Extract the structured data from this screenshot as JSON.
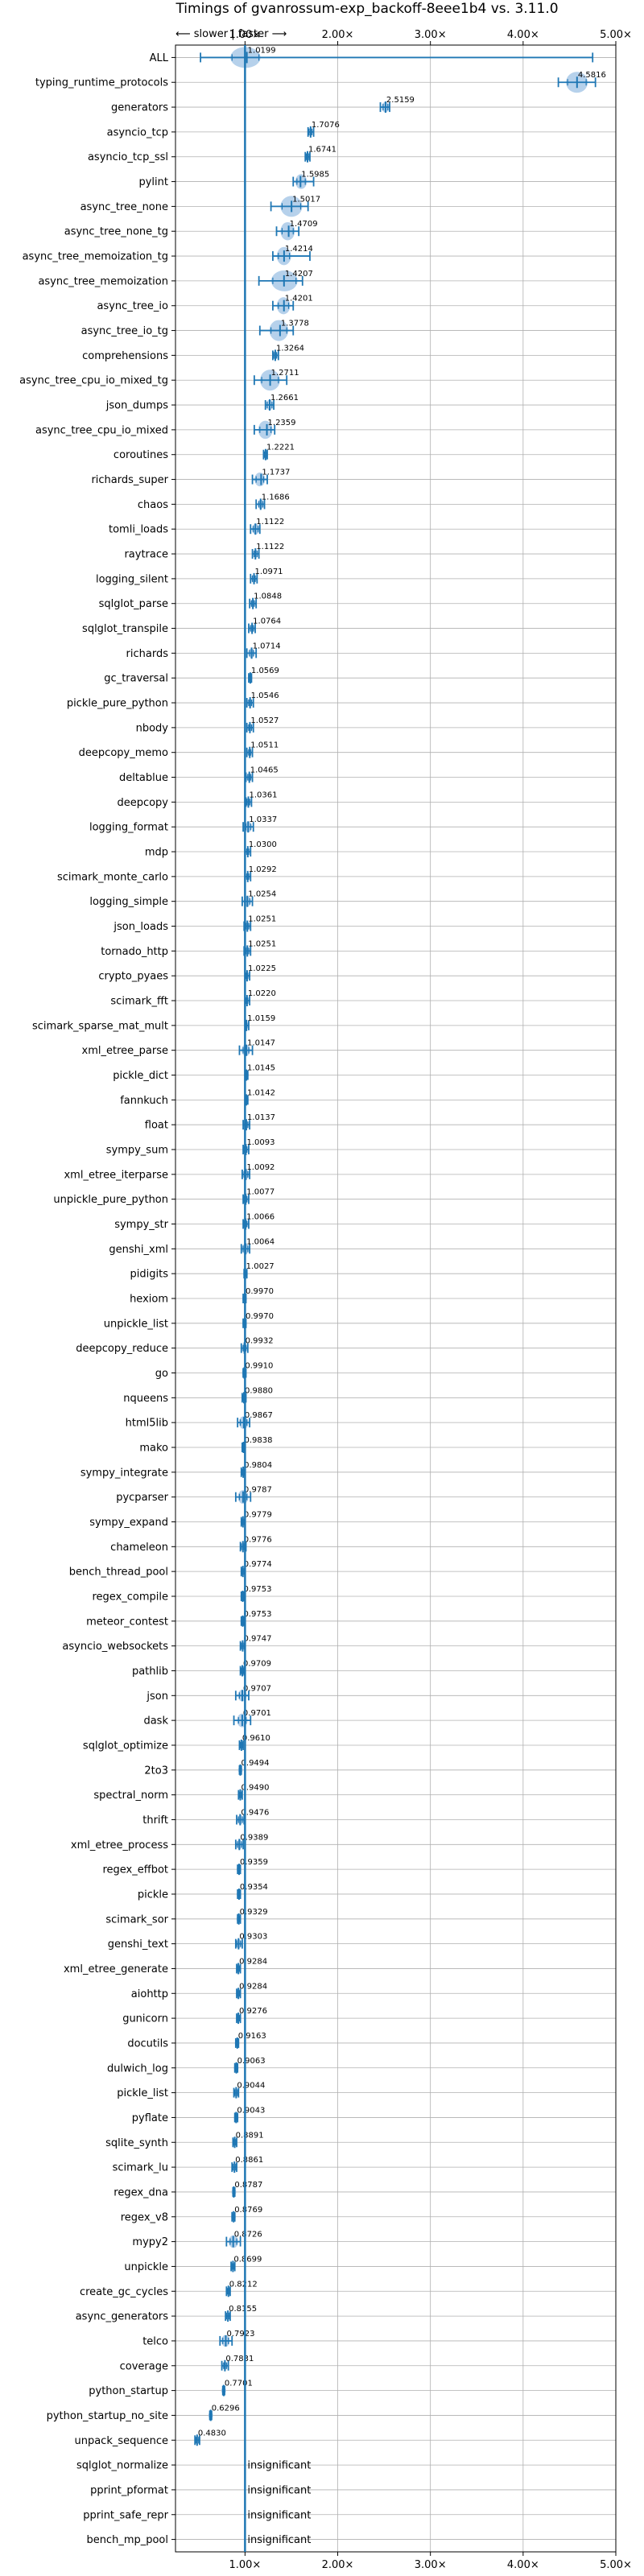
{
  "chart_data": {
    "type": "box-violin",
    "title": "Timings of gvanrossum-exp_backoff-8eee1b4 vs. 3.11.0",
    "direction_label": "⟵ slower | faster ⟶",
    "xlim": [
      0.25,
      5.0
    ],
    "xticks": [
      1,
      2,
      3,
      4,
      5
    ],
    "xtick_labels": [
      "1.00×",
      "2.00×",
      "3.00×",
      "4.00×",
      "5.00×"
    ],
    "reference_line": 1.0,
    "grid": true,
    "colors": {
      "violin": "#a9c9e8",
      "line": "#1f77b4",
      "grid": "#b0b0b0"
    },
    "insignificant_label": "insignificant",
    "rows": [
      {
        "name": "ALL",
        "mean": 1.0199,
        "label": "1.0199",
        "lo": 0.52,
        "q1": 0.86,
        "q3": 1.15,
        "hi": 4.75
      },
      {
        "name": "typing_runtime_protocols",
        "mean": 4.5816,
        "label": "4.5816",
        "lo": 4.38,
        "q1": 4.48,
        "q3": 4.68,
        "hi": 4.78
      },
      {
        "name": "generators",
        "mean": 2.5159,
        "label": "2.5159",
        "lo": 2.46,
        "q1": 2.49,
        "q3": 2.54,
        "hi": 2.56
      },
      {
        "name": "asyncio_tcp",
        "mean": 1.7076,
        "label": "1.7076",
        "lo": 1.68,
        "q1": 1.69,
        "q3": 1.72,
        "hi": 1.74
      },
      {
        "name": "asyncio_tcp_ssl",
        "mean": 1.6741,
        "label": "1.6741",
        "lo": 1.65,
        "q1": 1.66,
        "q3": 1.69,
        "hi": 1.7
      },
      {
        "name": "pylint",
        "mean": 1.5985,
        "label": "1.5985",
        "lo": 1.52,
        "q1": 1.56,
        "q3": 1.65,
        "hi": 1.74
      },
      {
        "name": "async_tree_none",
        "mean": 1.5017,
        "label": "1.5017",
        "lo": 1.28,
        "q1": 1.4,
        "q3": 1.6,
        "hi": 1.68
      },
      {
        "name": "async_tree_none_tg",
        "mean": 1.4709,
        "label": "1.4709",
        "lo": 1.34,
        "q1": 1.4,
        "q3": 1.52,
        "hi": 1.58
      },
      {
        "name": "async_tree_memoization_tg",
        "mean": 1.4214,
        "label": "1.4214",
        "lo": 1.3,
        "q1": 1.36,
        "q3": 1.48,
        "hi": 1.7
      },
      {
        "name": "async_tree_memoization",
        "mean": 1.4207,
        "label": "1.4207",
        "lo": 1.15,
        "q1": 1.3,
        "q3": 1.55,
        "hi": 1.62
      },
      {
        "name": "async_tree_io",
        "mean": 1.4201,
        "label": "1.4201",
        "lo": 1.3,
        "q1": 1.36,
        "q3": 1.47,
        "hi": 1.52
      },
      {
        "name": "async_tree_io_tg",
        "mean": 1.3778,
        "label": "1.3778",
        "lo": 1.16,
        "q1": 1.28,
        "q3": 1.45,
        "hi": 1.52
      },
      {
        "name": "comprehensions",
        "mean": 1.3264,
        "label": "1.3264",
        "lo": 1.3,
        "q1": 1.31,
        "q3": 1.34,
        "hi": 1.36
      },
      {
        "name": "async_tree_cpu_io_mixed_tg",
        "mean": 1.2711,
        "label": "1.2711",
        "lo": 1.1,
        "q1": 1.18,
        "q3": 1.36,
        "hi": 1.45
      },
      {
        "name": "json_dumps",
        "mean": 1.2661,
        "label": "1.2661",
        "lo": 1.22,
        "q1": 1.24,
        "q3": 1.29,
        "hi": 1.31
      },
      {
        "name": "async_tree_cpu_io_mixed",
        "mean": 1.2359,
        "label": "1.2359",
        "lo": 1.1,
        "q1": 1.16,
        "q3": 1.28,
        "hi": 1.32
      },
      {
        "name": "coroutines",
        "mean": 1.2221,
        "label": "1.2221",
        "lo": 1.2,
        "q1": 1.21,
        "q3": 1.23,
        "hi": 1.24
      },
      {
        "name": "richards_super",
        "mean": 1.1737,
        "label": "1.1737",
        "lo": 1.08,
        "q1": 1.12,
        "q3": 1.2,
        "hi": 1.24
      },
      {
        "name": "chaos",
        "mean": 1.1686,
        "label": "1.1686",
        "lo": 1.12,
        "q1": 1.15,
        "q3": 1.19,
        "hi": 1.21
      },
      {
        "name": "tomli_loads",
        "mean": 1.1122,
        "label": "1.1122",
        "lo": 1.06,
        "q1": 1.09,
        "q3": 1.14,
        "hi": 1.16
      },
      {
        "name": "raytrace",
        "mean": 1.1122,
        "label": "1.1122",
        "lo": 1.08,
        "q1": 1.1,
        "q3": 1.13,
        "hi": 1.15
      },
      {
        "name": "logging_silent",
        "mean": 1.0971,
        "label": "1.0971",
        "lo": 1.06,
        "q1": 1.08,
        "q3": 1.11,
        "hi": 1.13
      },
      {
        "name": "sqlglot_parse",
        "mean": 1.0848,
        "label": "1.0848",
        "lo": 1.05,
        "q1": 1.07,
        "q3": 1.1,
        "hi": 1.12
      },
      {
        "name": "sqlglot_transpile",
        "mean": 1.0764,
        "label": "1.0764",
        "lo": 1.04,
        "q1": 1.06,
        "q3": 1.09,
        "hi": 1.11
      },
      {
        "name": "richards",
        "mean": 1.0714,
        "label": "1.0714",
        "lo": 1.02,
        "q1": 1.05,
        "q3": 1.09,
        "hi": 1.12
      },
      {
        "name": "gc_traversal",
        "mean": 1.0569,
        "label": "1.0569",
        "lo": 1.04,
        "q1": 1.05,
        "q3": 1.06,
        "hi": 1.07
      },
      {
        "name": "pickle_pure_python",
        "mean": 1.0546,
        "label": "1.0546",
        "lo": 1.02,
        "q1": 1.04,
        "q3": 1.07,
        "hi": 1.09
      },
      {
        "name": "nbody",
        "mean": 1.0527,
        "label": "1.0527",
        "lo": 1.02,
        "q1": 1.04,
        "q3": 1.07,
        "hi": 1.09
      },
      {
        "name": "deepcopy_memo",
        "mean": 1.0511,
        "label": "1.0511",
        "lo": 1.02,
        "q1": 1.04,
        "q3": 1.06,
        "hi": 1.08
      },
      {
        "name": "deltablue",
        "mean": 1.0465,
        "label": "1.0465",
        "lo": 1.01,
        "q1": 1.03,
        "q3": 1.06,
        "hi": 1.08
      },
      {
        "name": "deepcopy",
        "mean": 1.0361,
        "label": "1.0361",
        "lo": 1.01,
        "q1": 1.02,
        "q3": 1.05,
        "hi": 1.07
      },
      {
        "name": "logging_format",
        "mean": 1.0337,
        "label": "1.0337",
        "lo": 0.98,
        "q1": 1.01,
        "q3": 1.06,
        "hi": 1.09
      },
      {
        "name": "mdp",
        "mean": 1.03,
        "label": "1.0300",
        "lo": 1.0,
        "q1": 1.02,
        "q3": 1.04,
        "hi": 1.06
      },
      {
        "name": "scimark_monte_carlo",
        "mean": 1.0292,
        "label": "1.0292",
        "lo": 1.0,
        "q1": 1.02,
        "q3": 1.04,
        "hi": 1.06
      },
      {
        "name": "logging_simple",
        "mean": 1.0254,
        "label": "1.0254",
        "lo": 0.97,
        "q1": 1.0,
        "q3": 1.05,
        "hi": 1.08
      },
      {
        "name": "json_loads",
        "mean": 1.0251,
        "label": "1.0251",
        "lo": 0.99,
        "q1": 1.01,
        "q3": 1.04,
        "hi": 1.06
      },
      {
        "name": "tornado_http",
        "mean": 1.0251,
        "label": "1.0251",
        "lo": 0.99,
        "q1": 1.01,
        "q3": 1.04,
        "hi": 1.06
      },
      {
        "name": "crypto_pyaes",
        "mean": 1.0225,
        "label": "1.0225",
        "lo": 1.0,
        "q1": 1.01,
        "q3": 1.03,
        "hi": 1.05
      },
      {
        "name": "scimark_fft",
        "mean": 1.022,
        "label": "1.0220",
        "lo": 1.0,
        "q1": 1.01,
        "q3": 1.03,
        "hi": 1.05
      },
      {
        "name": "scimark_sparse_mat_mult",
        "mean": 1.0159,
        "label": "1.0159",
        "lo": 1.0,
        "q1": 1.01,
        "q3": 1.02,
        "hi": 1.04
      },
      {
        "name": "xml_etree_parse",
        "mean": 1.0147,
        "label": "1.0147",
        "lo": 0.94,
        "q1": 0.98,
        "q3": 1.04,
        "hi": 1.08
      },
      {
        "name": "pickle_dict",
        "mean": 1.0145,
        "label": "1.0145",
        "lo": 1.0,
        "q1": 1.01,
        "q3": 1.02,
        "hi": 1.03
      },
      {
        "name": "fannkuch",
        "mean": 1.0142,
        "label": "1.0142",
        "lo": 1.0,
        "q1": 1.01,
        "q3": 1.02,
        "hi": 1.03
      },
      {
        "name": "float",
        "mean": 1.0137,
        "label": "1.0137",
        "lo": 0.98,
        "q1": 1.0,
        "q3": 1.03,
        "hi": 1.05
      },
      {
        "name": "sympy_sum",
        "mean": 1.0093,
        "label": "1.0093",
        "lo": 0.98,
        "q1": 0.99,
        "q3": 1.02,
        "hi": 1.04
      },
      {
        "name": "xml_etree_iterparse",
        "mean": 1.0092,
        "label": "1.0092",
        "lo": 0.97,
        "q1": 0.99,
        "q3": 1.03,
        "hi": 1.05
      },
      {
        "name": "unpickle_pure_python",
        "mean": 1.0077,
        "label": "1.0077",
        "lo": 0.98,
        "q1": 0.99,
        "q3": 1.02,
        "hi": 1.04
      },
      {
        "name": "sympy_str",
        "mean": 1.0066,
        "label": "1.0066",
        "lo": 0.98,
        "q1": 0.99,
        "q3": 1.02,
        "hi": 1.04
      },
      {
        "name": "genshi_xml",
        "mean": 1.0064,
        "label": "1.0064",
        "lo": 0.96,
        "q1": 0.98,
        "q3": 1.03,
        "hi": 1.05
      },
      {
        "name": "pidigits",
        "mean": 1.0027,
        "label": "1.0027",
        "lo": 0.99,
        "q1": 1.0,
        "q3": 1.01,
        "hi": 1.02
      },
      {
        "name": "hexiom",
        "mean": 0.997,
        "label": "0.9970",
        "lo": 0.98,
        "q1": 0.99,
        "q3": 1.0,
        "hi": 1.01
      },
      {
        "name": "unpickle_list",
        "mean": 0.997,
        "label": "0.9970",
        "lo": 0.98,
        "q1": 0.99,
        "q3": 1.0,
        "hi": 1.01
      },
      {
        "name": "deepcopy_reduce",
        "mean": 0.9932,
        "label": "0.9932",
        "lo": 0.96,
        "q1": 0.98,
        "q3": 1.01,
        "hi": 1.03
      },
      {
        "name": "go",
        "mean": 0.991,
        "label": "0.9910",
        "lo": 0.98,
        "q1": 0.985,
        "q3": 1.0,
        "hi": 1.01
      },
      {
        "name": "nqueens",
        "mean": 0.988,
        "label": "0.9880",
        "lo": 0.97,
        "q1": 0.98,
        "q3": 1.0,
        "hi": 1.01
      },
      {
        "name": "html5lib",
        "mean": 0.9867,
        "label": "0.9867",
        "lo": 0.92,
        "q1": 0.95,
        "q3": 1.02,
        "hi": 1.05
      },
      {
        "name": "mako",
        "mean": 0.9838,
        "label": "0.9838",
        "lo": 0.97,
        "q1": 0.98,
        "q3": 0.99,
        "hi": 1.0
      },
      {
        "name": "sympy_integrate",
        "mean": 0.9804,
        "label": "0.9804",
        "lo": 0.96,
        "q1": 0.97,
        "q3": 0.99,
        "hi": 1.0
      },
      {
        "name": "pycparser",
        "mean": 0.9787,
        "label": "0.9787",
        "lo": 0.9,
        "q1": 0.94,
        "q3": 1.02,
        "hi": 1.06
      },
      {
        "name": "sympy_expand",
        "mean": 0.9779,
        "label": "0.9779",
        "lo": 0.96,
        "q1": 0.97,
        "q3": 0.99,
        "hi": 1.0
      },
      {
        "name": "chameleon",
        "mean": 0.9776,
        "label": "0.9776",
        "lo": 0.95,
        "q1": 0.96,
        "q3": 0.99,
        "hi": 1.01
      },
      {
        "name": "bench_thread_pool",
        "mean": 0.9774,
        "label": "0.9774",
        "lo": 0.96,
        "q1": 0.97,
        "q3": 0.99,
        "hi": 1.0
      },
      {
        "name": "regex_compile",
        "mean": 0.9753,
        "label": "0.9753",
        "lo": 0.96,
        "q1": 0.97,
        "q3": 0.98,
        "hi": 0.99
      },
      {
        "name": "meteor_contest",
        "mean": 0.9753,
        "label": "0.9753",
        "lo": 0.96,
        "q1": 0.97,
        "q3": 0.98,
        "hi": 0.99
      },
      {
        "name": "asyncio_websockets",
        "mean": 0.9747,
        "label": "0.9747",
        "lo": 0.95,
        "q1": 0.96,
        "q3": 0.99,
        "hi": 1.0
      },
      {
        "name": "pathlib",
        "mean": 0.9709,
        "label": "0.9709",
        "lo": 0.95,
        "q1": 0.96,
        "q3": 0.98,
        "hi": 0.99
      },
      {
        "name": "json",
        "mean": 0.9707,
        "label": "0.9707",
        "lo": 0.9,
        "q1": 0.94,
        "q3": 1.0,
        "hi": 1.04
      },
      {
        "name": "dask",
        "mean": 0.9701,
        "label": "0.9701",
        "lo": 0.88,
        "q1": 0.93,
        "q3": 1.01,
        "hi": 1.06
      },
      {
        "name": "sqlglot_optimize",
        "mean": 0.961,
        "label": "0.9610",
        "lo": 0.94,
        "q1": 0.95,
        "q3": 0.97,
        "hi": 0.98
      },
      {
        "name": "2to3",
        "mean": 0.9494,
        "label": "0.9494",
        "lo": 0.94,
        "q1": 0.945,
        "q3": 0.955,
        "hi": 0.96
      },
      {
        "name": "spectral_norm",
        "mean": 0.949,
        "label": "0.9490",
        "lo": 0.93,
        "q1": 0.94,
        "q3": 0.96,
        "hi": 0.97
      },
      {
        "name": "thrift",
        "mean": 0.9476,
        "label": "0.9476",
        "lo": 0.91,
        "q1": 0.93,
        "q3": 0.97,
        "hi": 0.99
      },
      {
        "name": "xml_etree_process",
        "mean": 0.9389,
        "label": "0.9389",
        "lo": 0.9,
        "q1": 0.92,
        "q3": 0.96,
        "hi": 0.98
      },
      {
        "name": "regex_effbot",
        "mean": 0.9359,
        "label": "0.9359",
        "lo": 0.92,
        "q1": 0.93,
        "q3": 0.94,
        "hi": 0.95
      },
      {
        "name": "pickle",
        "mean": 0.9354,
        "label": "0.9354",
        "lo": 0.92,
        "q1": 0.93,
        "q3": 0.94,
        "hi": 0.95
      },
      {
        "name": "scimark_sor",
        "mean": 0.9329,
        "label": "0.9329",
        "lo": 0.92,
        "q1": 0.925,
        "q3": 0.94,
        "hi": 0.95
      },
      {
        "name": "genshi_text",
        "mean": 0.9303,
        "label": "0.9303",
        "lo": 0.9,
        "q1": 0.91,
        "q3": 0.95,
        "hi": 0.97
      },
      {
        "name": "xml_etree_generate",
        "mean": 0.9284,
        "label": "0.9284",
        "lo": 0.91,
        "q1": 0.92,
        "q3": 0.94,
        "hi": 0.95
      },
      {
        "name": "aiohttp",
        "mean": 0.9284,
        "label": "0.9284",
        "lo": 0.91,
        "q1": 0.92,
        "q3": 0.94,
        "hi": 0.95
      },
      {
        "name": "gunicorn",
        "mean": 0.9276,
        "label": "0.9276",
        "lo": 0.91,
        "q1": 0.92,
        "q3": 0.94,
        "hi": 0.95
      },
      {
        "name": "docutils",
        "mean": 0.9163,
        "label": "0.9163",
        "lo": 0.9,
        "q1": 0.91,
        "q3": 0.92,
        "hi": 0.93
      },
      {
        "name": "dulwich_log",
        "mean": 0.9063,
        "label": "0.9063",
        "lo": 0.89,
        "q1": 0.9,
        "q3": 0.91,
        "hi": 0.92
      },
      {
        "name": "pickle_list",
        "mean": 0.9044,
        "label": "0.9044",
        "lo": 0.88,
        "q1": 0.89,
        "q3": 0.92,
        "hi": 0.93
      },
      {
        "name": "pyflate",
        "mean": 0.9043,
        "label": "0.9043",
        "lo": 0.89,
        "q1": 0.9,
        "q3": 0.91,
        "hi": 0.92
      },
      {
        "name": "sqlite_synth",
        "mean": 0.8891,
        "label": "0.8891",
        "lo": 0.87,
        "q1": 0.88,
        "q3": 0.9,
        "hi": 0.91
      },
      {
        "name": "scimark_lu",
        "mean": 0.8861,
        "label": "0.8861",
        "lo": 0.86,
        "q1": 0.87,
        "q3": 0.9,
        "hi": 0.91
      },
      {
        "name": "regex_dna",
        "mean": 0.8787,
        "label": "0.8787",
        "lo": 0.87,
        "q1": 0.875,
        "q3": 0.885,
        "hi": 0.89
      },
      {
        "name": "regex_v8",
        "mean": 0.8769,
        "label": "0.8769",
        "lo": 0.86,
        "q1": 0.87,
        "q3": 0.88,
        "hi": 0.89
      },
      {
        "name": "mypy2",
        "mean": 0.8726,
        "label": "0.8726",
        "lo": 0.8,
        "q1": 0.84,
        "q3": 0.91,
        "hi": 0.95
      },
      {
        "name": "unpickle",
        "mean": 0.8699,
        "label": "0.8699",
        "lo": 0.85,
        "q1": 0.86,
        "q3": 0.88,
        "hi": 0.89
      },
      {
        "name": "create_gc_cycles",
        "mean": 0.8212,
        "label": "0.8212",
        "lo": 0.8,
        "q1": 0.81,
        "q3": 0.83,
        "hi": 0.84
      },
      {
        "name": "async_generators",
        "mean": 0.8155,
        "label": "0.8155",
        "lo": 0.79,
        "q1": 0.8,
        "q3": 0.83,
        "hi": 0.84
      },
      {
        "name": "telco",
        "mean": 0.7923,
        "label": "0.7923",
        "lo": 0.73,
        "q1": 0.76,
        "q3": 0.82,
        "hi": 0.86
      },
      {
        "name": "coverage",
        "mean": 0.7831,
        "label": "0.7831",
        "lo": 0.75,
        "q1": 0.77,
        "q3": 0.8,
        "hi": 0.82
      },
      {
        "name": "python_startup",
        "mean": 0.7701,
        "label": "0.7701",
        "lo": 0.76,
        "q1": 0.765,
        "q3": 0.775,
        "hi": 0.78
      },
      {
        "name": "python_startup_no_site",
        "mean": 0.6296,
        "label": "0.6296",
        "lo": 0.62,
        "q1": 0.625,
        "q3": 0.635,
        "hi": 0.64
      },
      {
        "name": "unpack_sequence",
        "mean": 0.483,
        "label": "0.4830",
        "lo": 0.46,
        "q1": 0.47,
        "q3": 0.5,
        "hi": 0.51
      },
      {
        "name": "sqlglot_normalize",
        "insignificant": true
      },
      {
        "name": "pprint_pformat",
        "insignificant": true
      },
      {
        "name": "pprint_safe_repr",
        "insignificant": true
      },
      {
        "name": "bench_mp_pool",
        "insignificant": true
      }
    ]
  }
}
